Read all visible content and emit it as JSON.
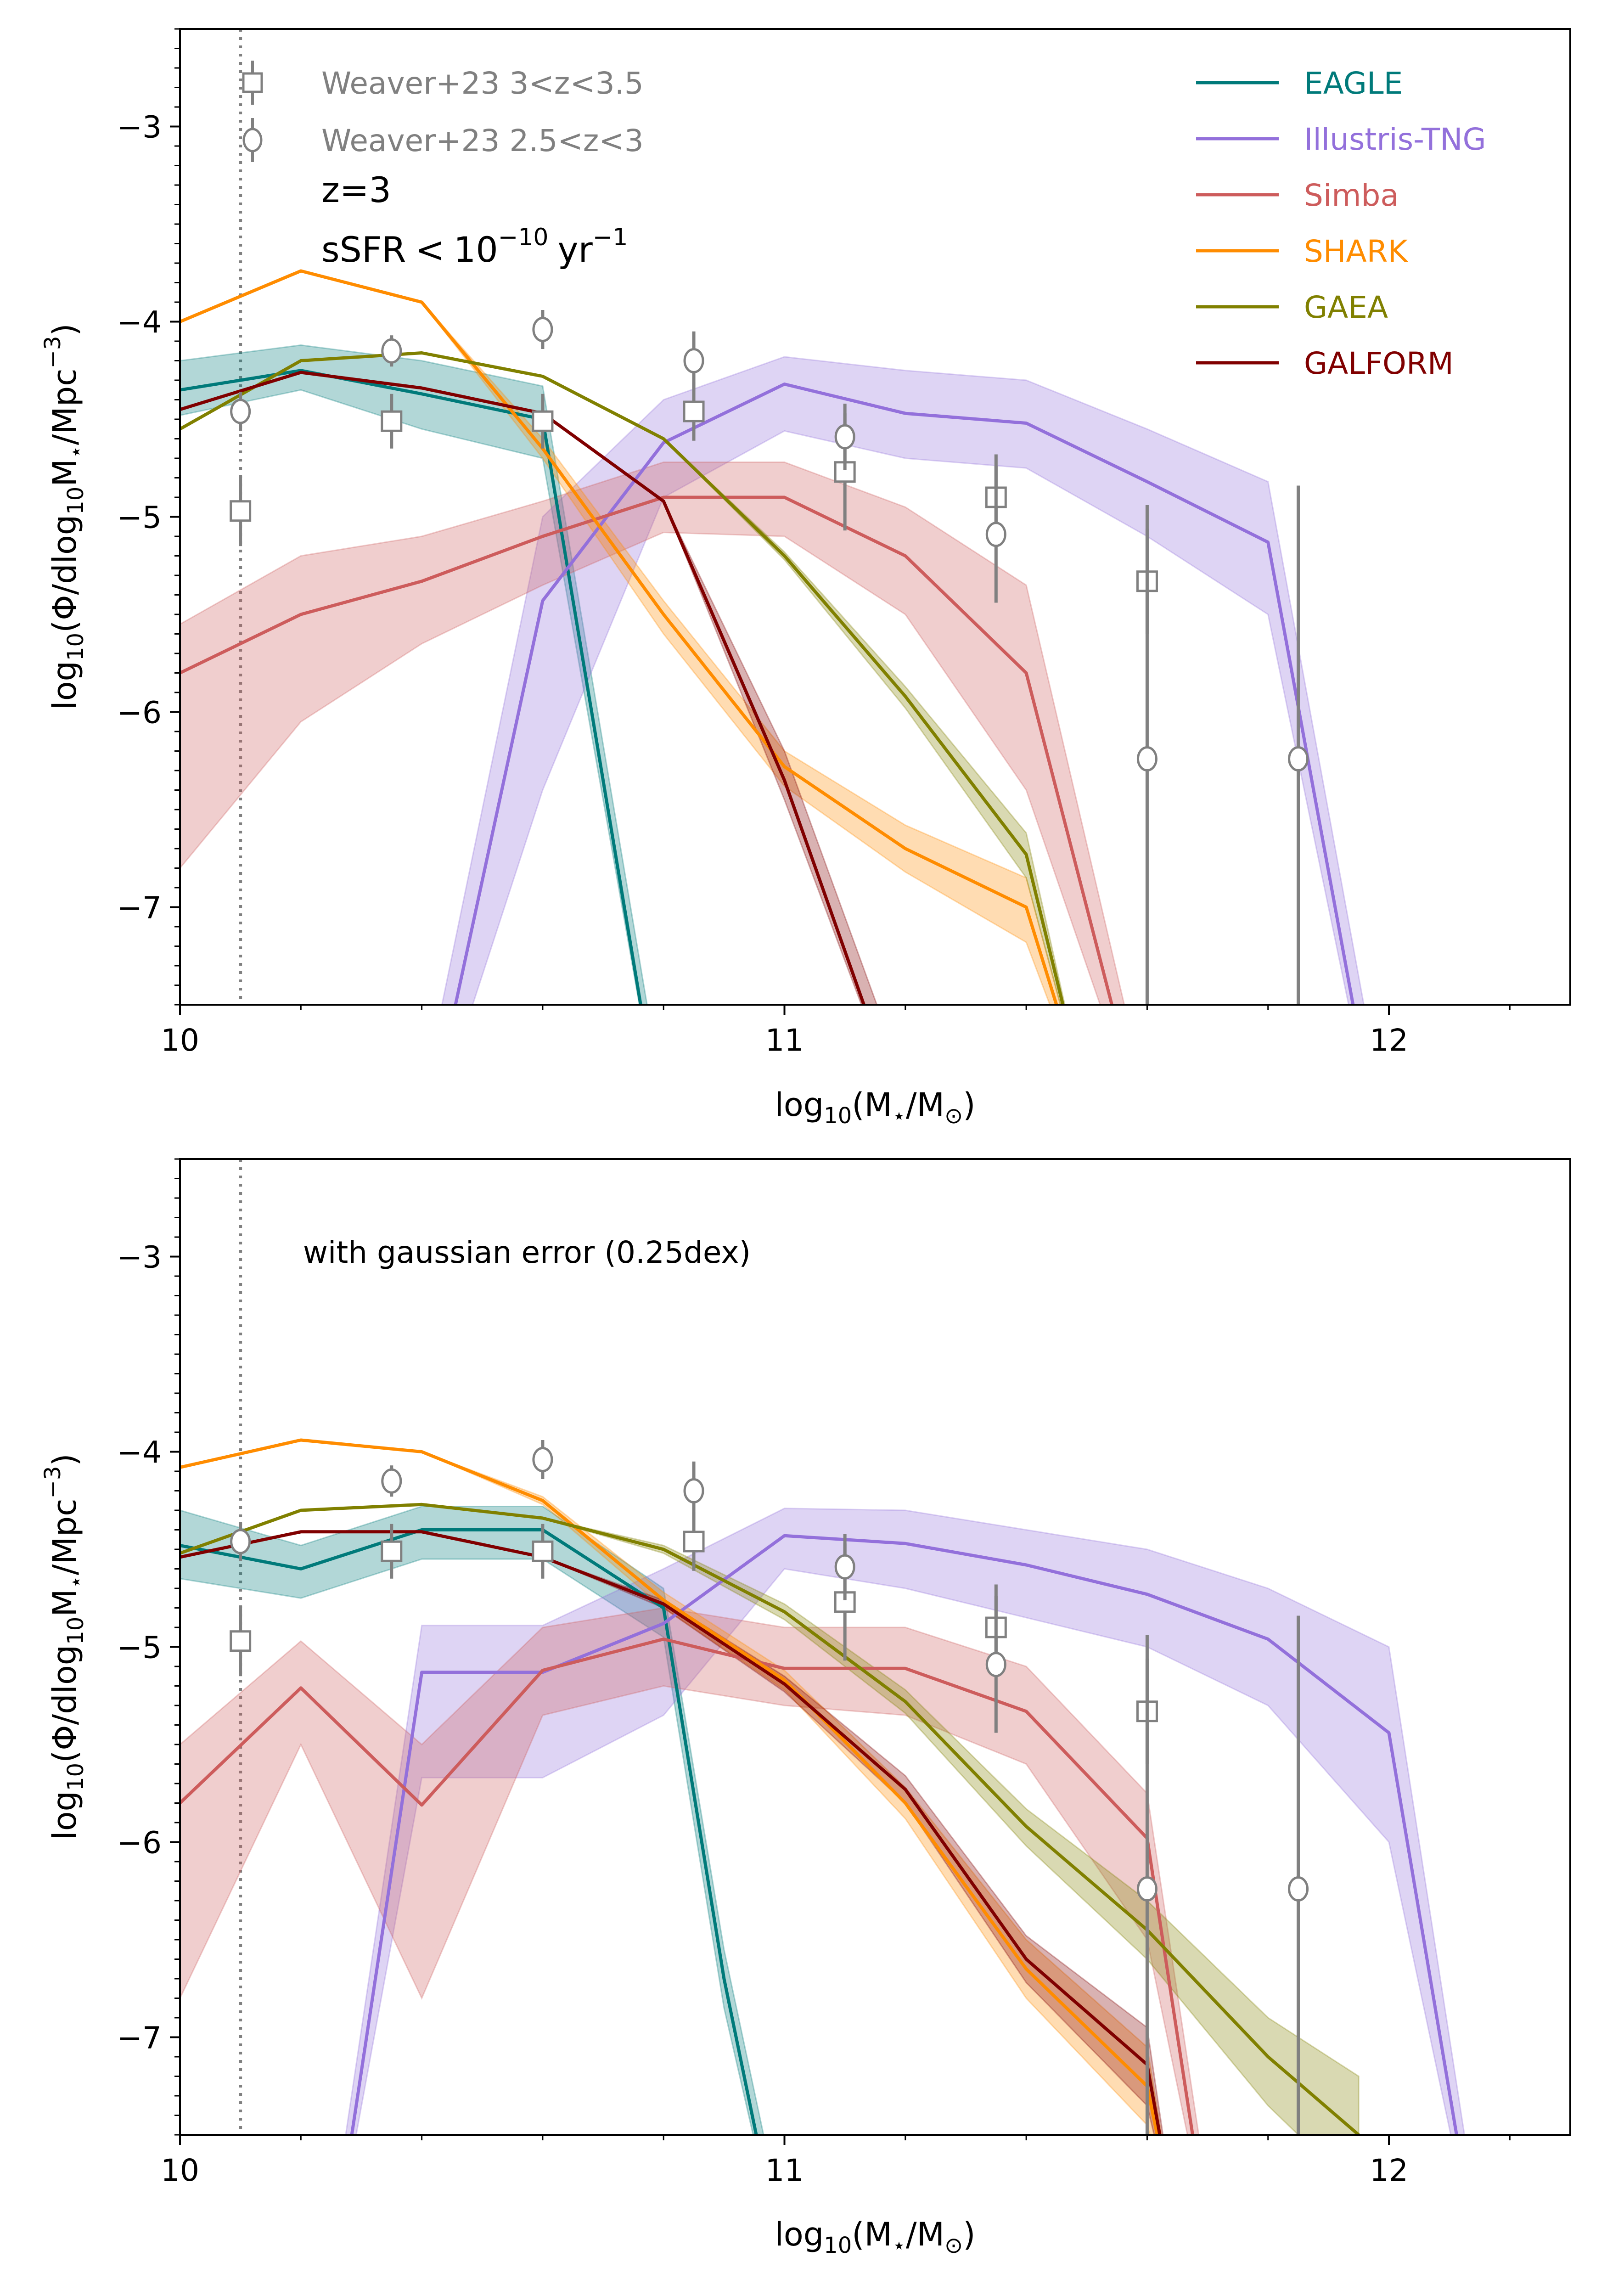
{
  "chart_data": [
    {
      "type": "line",
      "panel": "top",
      "xlabel": "log10(M⋆/M⊙)",
      "ylabel": "log10(Φ/dlog10M⋆/Mpc−3)",
      "xlim": [
        10.0,
        12.3
      ],
      "ylim": [
        -7.5,
        -2.5
      ],
      "x_ticks": [
        10,
        11,
        12
      ],
      "x_tick_labels": [
        "10",
        "11",
        "12"
      ],
      "y_ticks": [
        -7,
        -6,
        -5,
        -4,
        -3
      ],
      "y_tick_labels": [
        "−7",
        "−6",
        "−5",
        "−4",
        "−3"
      ],
      "mass_limit_x": 10.1,
      "annotations": [
        "z=3",
        "sSFR < 10^-10 yr^-1"
      ],
      "legend_placement": "top-right",
      "series": [
        {
          "name": "EAGLE",
          "color": "#007a7a",
          "x": [
            10.0,
            10.2,
            10.4,
            10.6,
            10.8
          ],
          "y": [
            -4.35,
            -4.25,
            -4.37,
            -4.5,
            -8.2
          ],
          "lo": [
            -4.48,
            -4.35,
            -4.55,
            -4.7,
            -8.2
          ],
          "hi": [
            -4.2,
            -4.12,
            -4.2,
            -4.33,
            -8.0
          ]
        },
        {
          "name": "Illustris-TNG",
          "color": "#9370db",
          "x": [
            10.4,
            10.6,
            10.8,
            11.0,
            11.2,
            11.4,
            11.6,
            11.8,
            12.0
          ],
          "y": [
            -8.3,
            -5.43,
            -4.62,
            -4.32,
            -4.47,
            -4.52,
            -4.82,
            -5.13,
            -8.5
          ],
          "lo": [
            -8.3,
            -6.4,
            -4.9,
            -4.56,
            -4.7,
            -4.75,
            -5.1,
            -5.5,
            -8.5
          ],
          "hi": [
            -8.0,
            -5.0,
            -4.4,
            -4.18,
            -4.25,
            -4.3,
            -4.55,
            -4.82,
            -8.2
          ]
        },
        {
          "name": "Simba",
          "color": "#cd5c5c",
          "x": [
            10.0,
            10.2,
            10.4,
            10.6,
            10.8,
            11.0,
            11.2,
            11.4,
            11.6
          ],
          "y": [
            -5.8,
            -5.5,
            -5.33,
            -5.1,
            -4.9,
            -4.9,
            -5.2,
            -5.8,
            -8.2
          ],
          "lo": [
            -6.8,
            -6.05,
            -5.65,
            -5.35,
            -5.08,
            -5.1,
            -5.5,
            -6.4,
            -8.2
          ],
          "hi": [
            -5.55,
            -5.2,
            -5.1,
            -4.92,
            -4.72,
            -4.72,
            -4.95,
            -5.35,
            -8.0
          ]
        },
        {
          "name": "SHARK",
          "color": "#ff8c00",
          "x": [
            10.0,
            10.2,
            10.4,
            10.6,
            10.8,
            11.0,
            11.2,
            11.4,
            11.5
          ],
          "y": [
            -4.0,
            -3.74,
            -3.9,
            -4.65,
            -5.5,
            -6.28,
            -6.7,
            -7.0,
            -8.0
          ],
          "lo": [
            -4.0,
            -3.74,
            -3.9,
            -4.7,
            -5.6,
            -6.38,
            -6.82,
            -7.18,
            -8.0
          ],
          "hi": [
            -4.0,
            -3.74,
            -3.9,
            -4.6,
            -5.43,
            -6.2,
            -6.58,
            -6.85,
            -8.0
          ]
        },
        {
          "name": "GAEA",
          "color": "#808000",
          "x": [
            10.0,
            10.2,
            10.4,
            10.6,
            10.8,
            11.0,
            11.2,
            11.4,
            11.5
          ],
          "y": [
            -4.55,
            -4.2,
            -4.16,
            -4.28,
            -4.6,
            -5.2,
            -5.92,
            -6.73,
            -8.0
          ],
          "lo": [
            -4.55,
            -4.2,
            -4.16,
            -4.28,
            -4.6,
            -5.22,
            -5.98,
            -6.85,
            -8.0
          ],
          "hi": [
            -4.55,
            -4.2,
            -4.16,
            -4.28,
            -4.6,
            -5.18,
            -5.87,
            -6.62,
            -8.0
          ]
        },
        {
          "name": "GALFORM",
          "color": "#800000",
          "x": [
            10.0,
            10.2,
            10.4,
            10.6,
            10.8,
            11.0,
            11.2
          ],
          "y": [
            -4.45,
            -4.26,
            -4.34,
            -4.47,
            -4.92,
            -6.35,
            -8.1
          ],
          "lo": [
            -4.45,
            -4.26,
            -4.34,
            -4.47,
            -4.92,
            -6.45,
            -8.1
          ],
          "hi": [
            -4.45,
            -4.26,
            -4.34,
            -4.47,
            -4.92,
            -6.2,
            -7.9
          ]
        }
      ],
      "observations": [
        {
          "name": "Weaver+23 3<z<3.5",
          "marker": "square",
          "color": "#808080",
          "x": [
            10.1,
            10.35,
            10.6,
            10.85,
            11.1,
            11.35,
            11.6
          ],
          "y": [
            -4.97,
            -4.51,
            -4.51,
            -4.46,
            -4.77,
            -4.9,
            -5.33
          ],
          "err": [
            0.18,
            0.14,
            0.14,
            0.15,
            0.3,
            0.22,
            0.27
          ]
        },
        {
          "name": "Weaver+23 2.5<z<3",
          "marker": "circle",
          "color": "#808080",
          "x": [
            10.1,
            10.35,
            10.6,
            10.85,
            11.1,
            11.35,
            11.6,
            11.85
          ],
          "y": [
            -4.46,
            -4.15,
            -4.04,
            -4.2,
            -4.59,
            -5.09,
            -6.24,
            -6.24
          ],
          "err": [
            0.1,
            0.08,
            0.1,
            0.15,
            0.17,
            0.35,
            1.3,
            1.4
          ]
        }
      ]
    },
    {
      "type": "line",
      "panel": "bottom",
      "xlabel": "log10(M⋆/M⊙)",
      "ylabel": "log10(Φ/dlog10M⋆/Mpc−3)",
      "xlim": [
        10.0,
        12.3
      ],
      "ylim": [
        -7.5,
        -2.5
      ],
      "x_ticks": [
        10,
        11,
        12
      ],
      "x_tick_labels": [
        "10",
        "11",
        "12"
      ],
      "y_ticks": [
        -7,
        -6,
        -5,
        -4,
        -3
      ],
      "y_tick_labels": [
        "−7",
        "−6",
        "−5",
        "−4",
        "−3"
      ],
      "mass_limit_x": 10.1,
      "annotations": [
        "with gaussian error (0.25dex)"
      ],
      "series": [
        {
          "name": "EAGLE",
          "color": "#007a7a",
          "x": [
            10.0,
            10.2,
            10.4,
            10.6,
            10.8,
            10.9,
            11.0
          ],
          "y": [
            -4.48,
            -4.6,
            -4.4,
            -4.4,
            -4.8,
            -6.7,
            -8.2
          ],
          "lo": [
            -4.65,
            -4.75,
            -4.55,
            -4.55,
            -4.95,
            -6.85,
            -8.2
          ],
          "hi": [
            -4.3,
            -4.48,
            -4.28,
            -4.28,
            -4.7,
            -6.55,
            -8.0
          ]
        },
        {
          "name": "Illustris-TNG",
          "color": "#9370db",
          "x": [
            10.25,
            10.4,
            10.6,
            10.8,
            11.0,
            11.2,
            11.4,
            11.6,
            11.8,
            12.0,
            12.15
          ],
          "y": [
            -8.2,
            -5.13,
            -5.13,
            -4.88,
            -4.43,
            -4.47,
            -4.58,
            -4.73,
            -4.96,
            -5.44,
            -8.2
          ],
          "lo": [
            -8.2,
            -5.67,
            -5.67,
            -5.35,
            -4.6,
            -4.7,
            -4.85,
            -5.0,
            -5.3,
            -6.0,
            -8.2
          ],
          "hi": [
            -8.0,
            -4.89,
            -4.89,
            -4.6,
            -4.29,
            -4.3,
            -4.4,
            -4.5,
            -4.7,
            -5.0,
            -8.0
          ]
        },
        {
          "name": "Simba",
          "color": "#cd5c5c",
          "x": [
            10.0,
            10.2,
            10.4,
            10.6,
            10.8,
            11.0,
            11.2,
            11.4,
            11.6,
            11.7
          ],
          "y": [
            -5.8,
            -5.21,
            -5.81,
            -5.12,
            -4.96,
            -5.11,
            -5.11,
            -5.33,
            -5.98,
            -8.0
          ],
          "lo": [
            -6.8,
            -5.5,
            -6.8,
            -5.35,
            -5.2,
            -5.3,
            -5.35,
            -5.6,
            -6.5,
            -8.0
          ],
          "hi": [
            -5.5,
            -4.97,
            -5.5,
            -4.9,
            -4.8,
            -4.9,
            -4.9,
            -5.1,
            -5.75,
            -7.8
          ]
        },
        {
          "name": "SHARK",
          "color": "#ff8c00",
          "x": [
            10.0,
            10.2,
            10.4,
            10.6,
            10.8,
            11.0,
            11.2,
            11.4,
            11.6,
            11.65
          ],
          "y": [
            -4.08,
            -3.94,
            -4.0,
            -4.25,
            -4.76,
            -5.17,
            -5.8,
            -6.65,
            -7.25,
            -8.0
          ],
          "lo": [
            -4.08,
            -3.94,
            -4.0,
            -4.27,
            -4.8,
            -5.22,
            -5.88,
            -6.8,
            -7.45,
            -8.0
          ],
          "hi": [
            -4.08,
            -3.94,
            -4.0,
            -4.23,
            -4.72,
            -5.12,
            -5.72,
            -6.5,
            -7.05,
            -8.0
          ]
        },
        {
          "name": "GAEA",
          "color": "#808000",
          "x": [
            10.0,
            10.2,
            10.4,
            10.6,
            10.8,
            11.0,
            11.2,
            11.4,
            11.6,
            11.8,
            11.95
          ],
          "y": [
            -4.52,
            -4.3,
            -4.27,
            -4.34,
            -4.5,
            -4.82,
            -5.28,
            -5.92,
            -6.45,
            -7.1,
            -7.5
          ],
          "lo": [
            -4.52,
            -4.3,
            -4.27,
            -4.34,
            -4.52,
            -4.86,
            -5.34,
            -6.02,
            -6.6,
            -7.35,
            -7.8
          ],
          "hi": [
            -4.52,
            -4.3,
            -4.27,
            -4.34,
            -4.48,
            -4.78,
            -5.22,
            -5.83,
            -6.3,
            -6.9,
            -7.2
          ]
        },
        {
          "name": "GALFORM",
          "color": "#800000",
          "x": [
            10.0,
            10.2,
            10.4,
            10.6,
            10.8,
            11.0,
            11.2,
            11.4,
            11.6,
            11.65
          ],
          "y": [
            -4.54,
            -4.41,
            -4.41,
            -4.54,
            -4.78,
            -5.19,
            -5.73,
            -6.6,
            -7.14,
            -8.0
          ],
          "lo": [
            -4.54,
            -4.41,
            -4.41,
            -4.54,
            -4.8,
            -5.23,
            -5.8,
            -6.72,
            -7.35,
            -8.0
          ],
          "hi": [
            -4.54,
            -4.41,
            -4.41,
            -4.54,
            -4.76,
            -5.15,
            -5.66,
            -6.48,
            -6.95,
            -8.0
          ]
        }
      ],
      "observations": [
        {
          "name": "Weaver+23 3<z<3.5",
          "marker": "square",
          "color": "#808080",
          "x": [
            10.1,
            10.35,
            10.6,
            10.85,
            11.1,
            11.35,
            11.6
          ],
          "y": [
            -4.97,
            -4.51,
            -4.51,
            -4.46,
            -4.77,
            -4.9,
            -5.33
          ],
          "err": [
            0.18,
            0.14,
            0.14,
            0.15,
            0.3,
            0.22,
            0.27
          ]
        },
        {
          "name": "Weaver+23 2.5<z<3",
          "marker": "circle",
          "color": "#808080",
          "x": [
            10.1,
            10.35,
            10.6,
            10.85,
            11.1,
            11.35,
            11.6,
            11.85
          ],
          "y": [
            -4.46,
            -4.15,
            -4.04,
            -4.2,
            -4.59,
            -5.09,
            -6.24,
            -6.24
          ],
          "err": [
            0.1,
            0.08,
            0.1,
            0.15,
            0.17,
            0.35,
            1.3,
            1.4
          ]
        }
      ]
    }
  ]
}
